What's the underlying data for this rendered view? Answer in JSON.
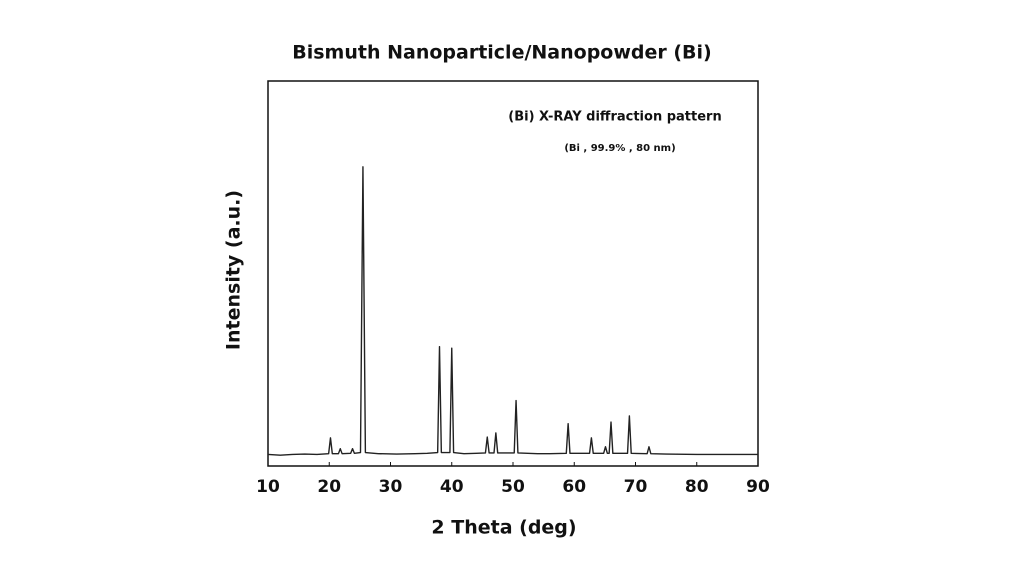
{
  "chart_data": {
    "type": "line",
    "title": "Bismuth Nanoparticle/Nanopowder (Bi)",
    "annotations": [
      "(Bi) X-RAY diffraction pattern",
      "(Bi , 99.9% , 80 nm)"
    ],
    "x_label": "2 Theta (deg)",
    "y_label": "Intensity (a.u.)",
    "xlim": [
      10,
      90
    ],
    "xticks": [
      10,
      20,
      30,
      40,
      50,
      60,
      70,
      80,
      90
    ],
    "ylim": [
      0,
      100
    ],
    "grid": false,
    "x": [
      10,
      12,
      14,
      16,
      18,
      19.9,
      20.2,
      20.5,
      21.5,
      21.8,
      22.1,
      23.5,
      23.8,
      24.1,
      25.1,
      25.5,
      25.9,
      28,
      31,
      34,
      36,
      37.7,
      38.0,
      38.3,
      39.7,
      40.0,
      40.3,
      42,
      44,
      45.5,
      45.8,
      46.1,
      46.9,
      47.2,
      47.5,
      50.2,
      50.5,
      50.8,
      54,
      56,
      58.7,
      59.0,
      59.3,
      62.5,
      62.8,
      63.1,
      64.8,
      65.1,
      65.4,
      65.7,
      66.0,
      66.3,
      68.7,
      69.0,
      69.3,
      71.9,
      72.2,
      72.5,
      75,
      80,
      85,
      90
    ],
    "series": [
      {
        "color": "#222222",
        "values": [
          3,
          2.8,
          3,
          3.1,
          3,
          3.2,
          7.3,
          3.2,
          3.2,
          4.5,
          3.2,
          3.3,
          4.5,
          3.3,
          3.5,
          77.7,
          3.5,
          3.2,
          3.1,
          3.2,
          3.3,
          3.5,
          31,
          3.5,
          3.5,
          30.6,
          3.5,
          3.2,
          3.3,
          3.4,
          7.5,
          3.4,
          3.4,
          8.6,
          3.4,
          3.4,
          17,
          3.4,
          3.2,
          3.2,
          3.3,
          11,
          3.3,
          3.3,
          7.3,
          3.3,
          3.3,
          5,
          3.3,
          3.3,
          11.4,
          3.3,
          3.3,
          13,
          3.3,
          3.2,
          5,
          3.2,
          3.1,
          3,
          3,
          3
        ]
      }
    ]
  }
}
